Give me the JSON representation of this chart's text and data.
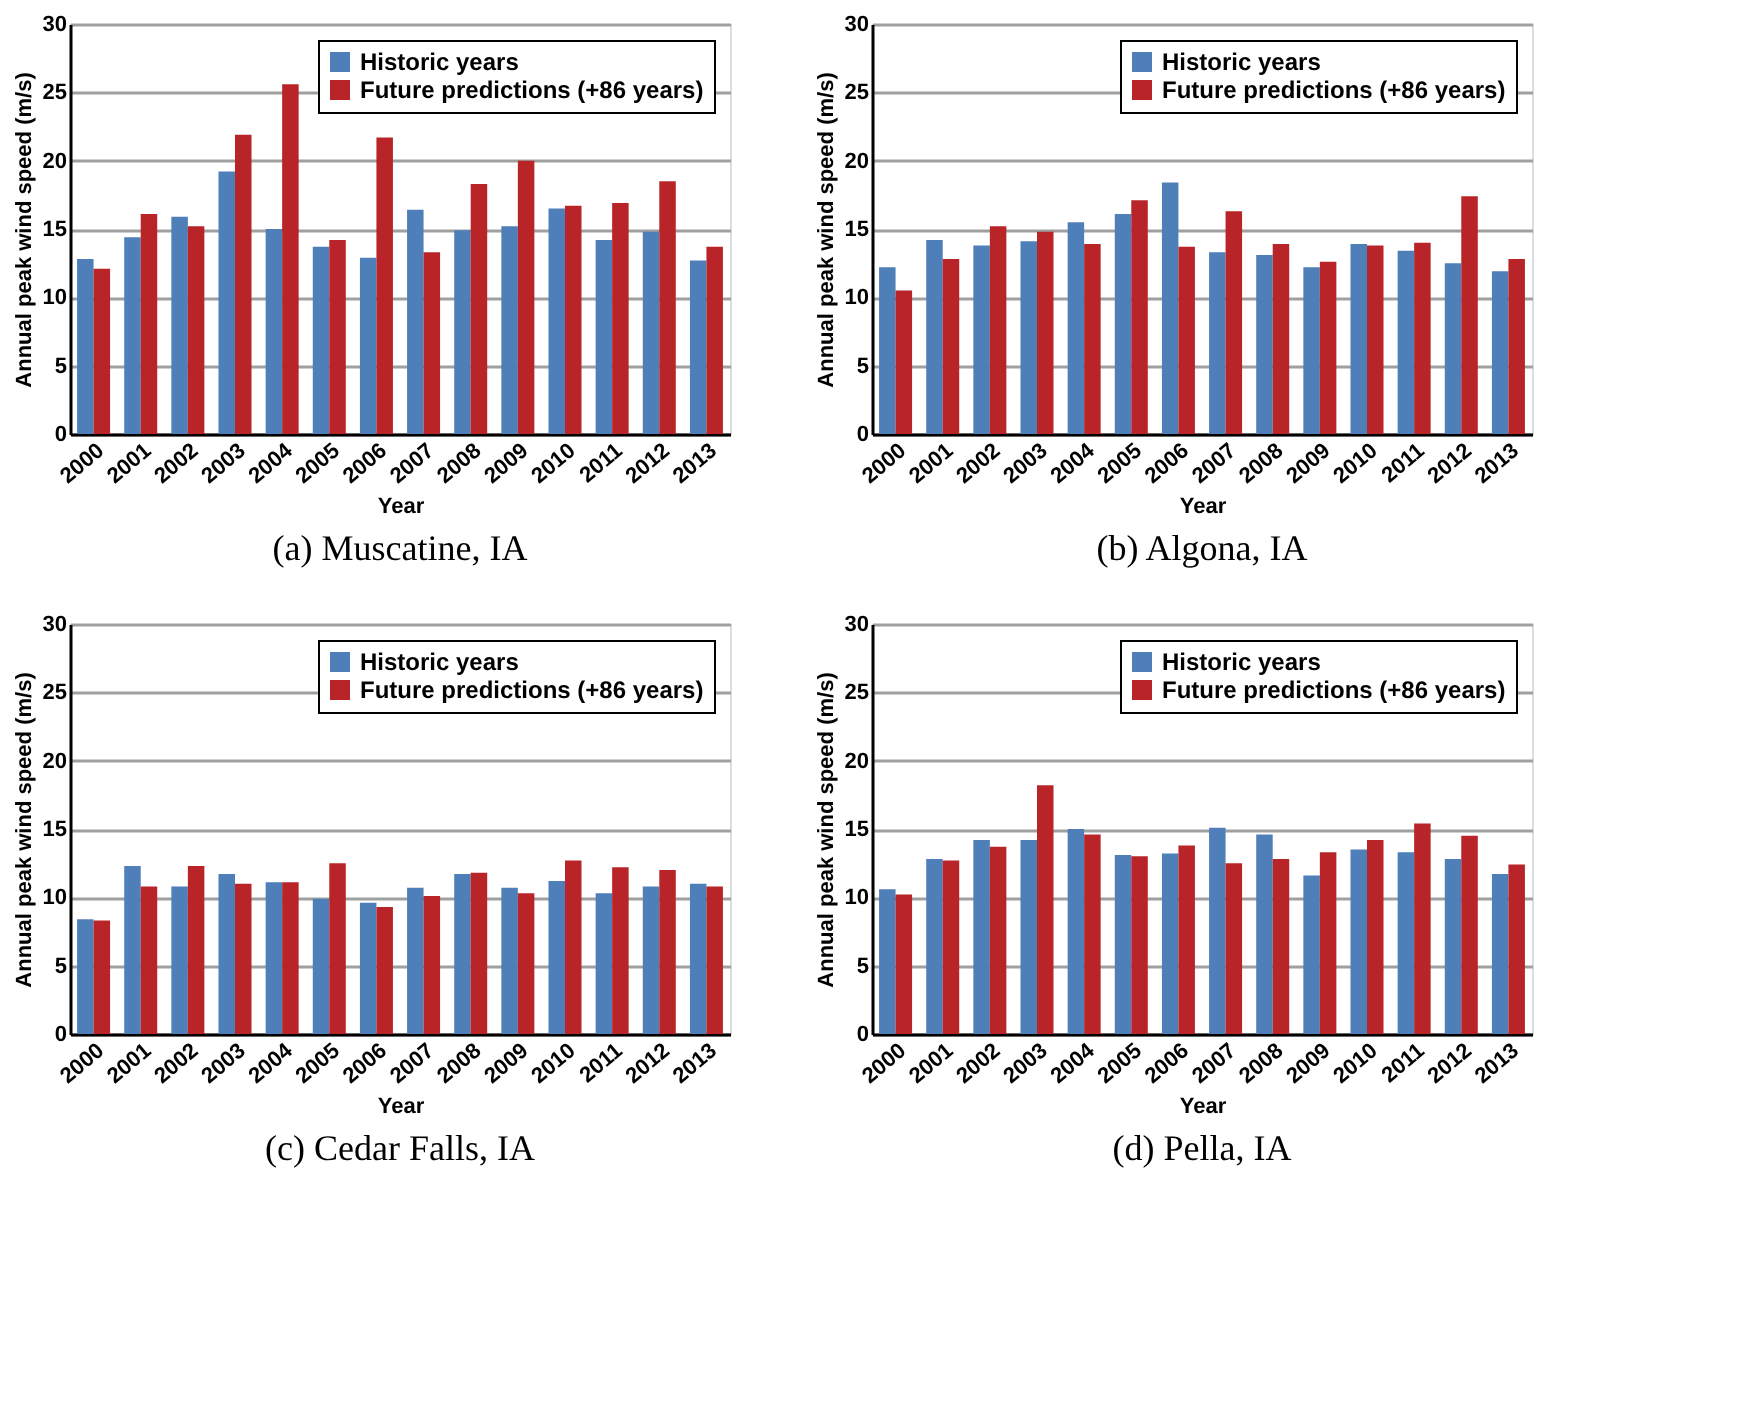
{
  "chart_data": [
    {
      "type": "bar",
      "title": "(a) Muscatine, IA",
      "xlabel": "Year",
      "ylabel": "Annual peak wind speed (m/s)",
      "categories": [
        "2000",
        "2001",
        "2002",
        "2003",
        "2004",
        "2005",
        "2006",
        "2007",
        "2008",
        "2009",
        "2010",
        "2011",
        "2012",
        "2013"
      ],
      "series": [
        {
          "name": "Historic years",
          "color": "#4f7fb8",
          "values": [
            12.8,
            14.4,
            15.9,
            19.2,
            15.0,
            13.7,
            12.9,
            16.4,
            14.9,
            15.2,
            16.5,
            14.2,
            14.8,
            12.7
          ]
        },
        {
          "name": "Future predictions (+86 years)",
          "color": "#b82428",
          "values": [
            12.1,
            16.1,
            15.2,
            21.9,
            25.6,
            14.2,
            21.7,
            13.3,
            18.3,
            20.0,
            16.7,
            16.9,
            18.5,
            13.7
          ]
        }
      ],
      "ylim": [
        0,
        30
      ],
      "yticks": [
        0,
        5,
        10,
        15,
        20,
        25,
        30
      ],
      "grid": "y",
      "legend": "top right"
    },
    {
      "type": "bar",
      "title": "(b) Algona, IA",
      "xlabel": "Year",
      "ylabel": "Annual peak wind speed (m/s)",
      "categories": [
        "2000",
        "2001",
        "2002",
        "2003",
        "2004",
        "2005",
        "2006",
        "2007",
        "2008",
        "2009",
        "2010",
        "2011",
        "2012",
        "2013"
      ],
      "series": [
        {
          "name": "Historic years",
          "color": "#4f7fb8",
          "values": [
            12.2,
            14.2,
            13.8,
            14.1,
            15.5,
            16.1,
            18.4,
            13.3,
            13.1,
            12.2,
            13.9,
            13.4,
            12.5,
            11.9
          ]
        },
        {
          "name": "Future predictions (+86 years)",
          "color": "#b82428",
          "values": [
            10.5,
            12.8,
            15.2,
            14.8,
            13.9,
            17.1,
            13.7,
            16.3,
            13.9,
            12.6,
            13.8,
            14.0,
            17.4,
            12.8
          ]
        }
      ],
      "ylim": [
        0,
        30
      ],
      "yticks": [
        0,
        5,
        10,
        15,
        20,
        25,
        30
      ],
      "grid": "y",
      "legend": "top right"
    },
    {
      "type": "bar",
      "title": "(c) Cedar Falls, IA",
      "xlabel": "Year",
      "ylabel": "Annual peak wind speed (m/s)",
      "categories": [
        "2000",
        "2001",
        "2002",
        "2003",
        "2004",
        "2005",
        "2006",
        "2007",
        "2008",
        "2009",
        "2010",
        "2011",
        "2012",
        "2013"
      ],
      "series": [
        {
          "name": "Historic years",
          "color": "#4f7fb8",
          "values": [
            8.4,
            12.3,
            10.8,
            11.7,
            11.1,
            9.9,
            9.6,
            10.7,
            11.7,
            10.7,
            11.2,
            10.3,
            10.8,
            11.0
          ]
        },
        {
          "name": "Future predictions (+86 years)",
          "color": "#b82428",
          "values": [
            8.3,
            10.8,
            12.3,
            11.0,
            11.1,
            12.5,
            9.3,
            10.1,
            11.8,
            10.3,
            12.7,
            12.2,
            12.0,
            10.8
          ]
        }
      ],
      "ylim": [
        0,
        30
      ],
      "yticks": [
        0,
        5,
        10,
        15,
        20,
        25,
        30
      ],
      "grid": "y",
      "legend": "top right"
    },
    {
      "type": "bar",
      "title": "(d) Pella, IA",
      "xlabel": "Year",
      "ylabel": "Annual peak wind speed (m/s)",
      "categories": [
        "2000",
        "2001",
        "2002",
        "2003",
        "2004",
        "2005",
        "2006",
        "2007",
        "2008",
        "2009",
        "2010",
        "2011",
        "2012",
        "2013"
      ],
      "series": [
        {
          "name": "Historic years",
          "color": "#4f7fb8",
          "values": [
            10.6,
            12.8,
            14.2,
            14.2,
            15.0,
            13.1,
            13.2,
            15.1,
            14.6,
            11.6,
            13.5,
            13.3,
            12.8,
            11.7
          ]
        },
        {
          "name": "Future predictions (+86 years)",
          "color": "#b82428",
          "values": [
            10.2,
            12.7,
            13.7,
            18.2,
            14.6,
            13.0,
            13.8,
            12.5,
            12.8,
            13.3,
            14.2,
            15.4,
            14.5,
            12.4
          ]
        }
      ],
      "ylim": [
        0,
        30
      ],
      "yticks": [
        0,
        5,
        10,
        15,
        20,
        25,
        30
      ],
      "grid": "y",
      "legend": "top right"
    }
  ]
}
